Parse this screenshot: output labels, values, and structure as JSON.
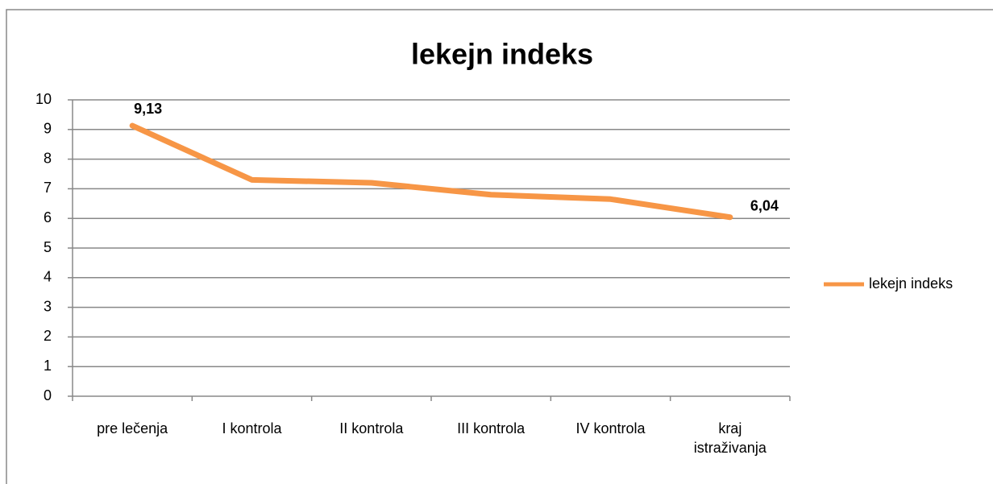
{
  "chart_data": {
    "type": "line",
    "title": "lekejn indeks",
    "categories": [
      "pre lečenja",
      "I kontrola",
      "II kontrola",
      "III kontrola",
      "IV kontrola",
      "kraj istraživanja"
    ],
    "series": [
      {
        "name": "lekejn indeks",
        "color": "#f79646",
        "values": [
          9.13,
          7.3,
          7.2,
          6.8,
          6.65,
          6.04
        ],
        "value_labels": [
          "9,13",
          null,
          null,
          null,
          null,
          "6,04"
        ]
      }
    ],
    "ylim": [
      0,
      10
    ],
    "yticks": [
      0,
      1,
      2,
      3,
      4,
      5,
      6,
      7,
      8,
      9,
      10
    ],
    "grid": true,
    "legend": "right"
  }
}
